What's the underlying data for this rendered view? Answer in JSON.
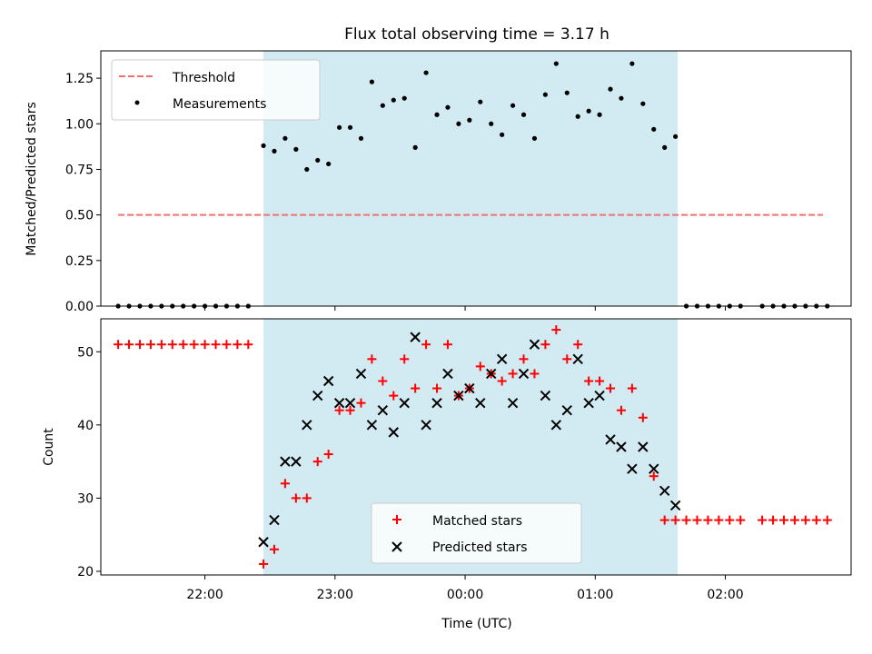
{
  "chart_data": [
    {
      "type": "scatter",
      "title": "Flux total observing time = 3.17 h",
      "ylabel": "Matched/Predicted stars",
      "xlabel": "",
      "xlim": [
        "21:12",
        "02:58"
      ],
      "ylim": [
        0.0,
        1.4
      ],
      "yticks": [
        "0.00",
        "0.25",
        "0.50",
        "0.75",
        "1.00",
        "1.25"
      ],
      "shaded_span": [
        "22:27",
        "01:38"
      ],
      "threshold": {
        "label": "Threshold",
        "y": 0.5,
        "x": [
          "21:20",
          "02:45"
        ],
        "color": "#f07070"
      },
      "measurements_label": "Measurements",
      "measurements": [
        [
          "21:20",
          0
        ],
        [
          "21:25",
          0
        ],
        [
          "21:30",
          0
        ],
        [
          "21:35",
          0
        ],
        [
          "21:40",
          0
        ],
        [
          "21:45",
          0
        ],
        [
          "21:50",
          0
        ],
        [
          "21:55",
          0
        ],
        [
          "22:00",
          0
        ],
        [
          "22:05",
          0
        ],
        [
          "22:10",
          0
        ],
        [
          "22:15",
          0
        ],
        [
          "22:20",
          0
        ],
        [
          "22:27",
          0.88
        ],
        [
          "22:32",
          0.85
        ],
        [
          "22:37",
          0.92
        ],
        [
          "22:42",
          0.86
        ],
        [
          "22:47",
          0.75
        ],
        [
          "22:52",
          0.8
        ],
        [
          "22:57",
          0.78
        ],
        [
          "23:02",
          0.98
        ],
        [
          "23:07",
          0.98
        ],
        [
          "23:12",
          0.92
        ],
        [
          "23:17",
          1.23
        ],
        [
          "23:22",
          1.1
        ],
        [
          "23:27",
          1.13
        ],
        [
          "23:32",
          1.14
        ],
        [
          "23:37",
          0.87
        ],
        [
          "23:42",
          1.28
        ],
        [
          "23:47",
          1.05
        ],
        [
          "23:52",
          1.09
        ],
        [
          "23:57",
          1.0
        ],
        [
          "00:02",
          1.02
        ],
        [
          "00:07",
          1.12
        ],
        [
          "00:12",
          1.0
        ],
        [
          "00:17",
          0.94
        ],
        [
          "00:22",
          1.1
        ],
        [
          "00:27",
          1.05
        ],
        [
          "00:32",
          0.92
        ],
        [
          "00:37",
          1.16
        ],
        [
          "00:42",
          1.33
        ],
        [
          "00:47",
          1.17
        ],
        [
          "00:52",
          1.04
        ],
        [
          "00:57",
          1.07
        ],
        [
          "01:02",
          1.05
        ],
        [
          "01:07",
          1.19
        ],
        [
          "01:12",
          1.14
        ],
        [
          "01:17",
          1.33
        ],
        [
          "01:22",
          1.11
        ],
        [
          "01:27",
          0.97
        ],
        [
          "01:32",
          0.87
        ],
        [
          "01:37",
          0.93
        ],
        [
          "01:42",
          0
        ],
        [
          "01:47",
          0
        ],
        [
          "01:52",
          0
        ],
        [
          "01:57",
          0
        ],
        [
          "02:02",
          0
        ],
        [
          "02:07",
          0
        ],
        [
          "02:17",
          0
        ],
        [
          "02:22",
          0
        ],
        [
          "02:27",
          0
        ],
        [
          "02:32",
          0
        ],
        [
          "02:37",
          0
        ],
        [
          "02:42",
          0
        ],
        [
          "02:47",
          0
        ]
      ]
    },
    {
      "type": "scatter",
      "title": "",
      "ylabel": "Count",
      "xlabel": "Time (UTC)",
      "xlim": [
        "21:12",
        "02:58"
      ],
      "ylim": [
        19.5,
        54.5
      ],
      "yticks": [
        "20",
        "30",
        "40",
        "50"
      ],
      "xticks": [
        "22:00",
        "23:00",
        "00:00",
        "01:00",
        "02:00"
      ],
      "shaded_span": [
        "22:27",
        "01:38"
      ],
      "series": [
        {
          "name": "Matched stars",
          "marker": "plus",
          "color": "#ff0000",
          "points": [
            [
              "21:20",
              51
            ],
            [
              "21:25",
              51
            ],
            [
              "21:30",
              51
            ],
            [
              "21:35",
              51
            ],
            [
              "21:40",
              51
            ],
            [
              "21:45",
              51
            ],
            [
              "21:50",
              51
            ],
            [
              "21:55",
              51
            ],
            [
              "22:00",
              51
            ],
            [
              "22:05",
              51
            ],
            [
              "22:10",
              51
            ],
            [
              "22:15",
              51
            ],
            [
              "22:20",
              51
            ],
            [
              "22:27",
              21
            ],
            [
              "22:32",
              23
            ],
            [
              "22:37",
              32
            ],
            [
              "22:42",
              30
            ],
            [
              "22:47",
              30
            ],
            [
              "22:52",
              35
            ],
            [
              "22:57",
              36
            ],
            [
              "23:02",
              42
            ],
            [
              "23:07",
              42
            ],
            [
              "23:12",
              43
            ],
            [
              "23:17",
              49
            ],
            [
              "23:22",
              46
            ],
            [
              "23:27",
              44
            ],
            [
              "23:32",
              49
            ],
            [
              "23:37",
              45
            ],
            [
              "23:42",
              51
            ],
            [
              "23:47",
              45
            ],
            [
              "23:52",
              51
            ],
            [
              "23:57",
              44
            ],
            [
              "00:02",
              45
            ],
            [
              "00:07",
              48
            ],
            [
              "00:12",
              47
            ],
            [
              "00:17",
              46
            ],
            [
              "00:22",
              47
            ],
            [
              "00:27",
              49
            ],
            [
              "00:32",
              47
            ],
            [
              "00:37",
              51
            ],
            [
              "00:42",
              53
            ],
            [
              "00:47",
              49
            ],
            [
              "00:52",
              51
            ],
            [
              "00:57",
              46
            ],
            [
              "01:02",
              46
            ],
            [
              "01:07",
              45
            ],
            [
              "01:12",
              42
            ],
            [
              "01:17",
              45
            ],
            [
              "01:22",
              41
            ],
            [
              "01:27",
              33
            ],
            [
              "01:32",
              27
            ],
            [
              "01:37",
              27
            ],
            [
              "01:42",
              27
            ],
            [
              "01:47",
              27
            ],
            [
              "01:52",
              27
            ],
            [
              "01:57",
              27
            ],
            [
              "02:02",
              27
            ],
            [
              "02:07",
              27
            ],
            [
              "02:17",
              27
            ],
            [
              "02:22",
              27
            ],
            [
              "02:27",
              27
            ],
            [
              "02:32",
              27
            ],
            [
              "02:37",
              27
            ],
            [
              "02:42",
              27
            ],
            [
              "02:47",
              27
            ]
          ]
        },
        {
          "name": "Predicted stars",
          "marker": "x",
          "color": "#000000",
          "points": [
            [
              "22:27",
              24
            ],
            [
              "22:32",
              27
            ],
            [
              "22:37",
              35
            ],
            [
              "22:42",
              35
            ],
            [
              "22:47",
              40
            ],
            [
              "22:52",
              44
            ],
            [
              "22:57",
              46
            ],
            [
              "23:02",
              43
            ],
            [
              "23:07",
              43
            ],
            [
              "23:12",
              47
            ],
            [
              "23:17",
              40
            ],
            [
              "23:22",
              42
            ],
            [
              "23:27",
              39
            ],
            [
              "23:32",
              43
            ],
            [
              "23:37",
              52
            ],
            [
              "23:42",
              40
            ],
            [
              "23:47",
              43
            ],
            [
              "23:52",
              47
            ],
            [
              "23:57",
              44
            ],
            [
              "00:02",
              45
            ],
            [
              "00:07",
              43
            ],
            [
              "00:12",
              47
            ],
            [
              "00:17",
              49
            ],
            [
              "00:22",
              43
            ],
            [
              "00:27",
              47
            ],
            [
              "00:32",
              51
            ],
            [
              "00:37",
              44
            ],
            [
              "00:42",
              40
            ],
            [
              "00:47",
              42
            ],
            [
              "00:52",
              49
            ],
            [
              "00:57",
              43
            ],
            [
              "01:02",
              44
            ],
            [
              "01:07",
              38
            ],
            [
              "01:12",
              37
            ],
            [
              "01:17",
              34
            ],
            [
              "01:22",
              37
            ],
            [
              "01:27",
              34
            ],
            [
              "01:32",
              31
            ],
            [
              "01:37",
              29
            ]
          ]
        }
      ]
    }
  ],
  "colors": {
    "span": "#add8e6",
    "threshold": "#f07070",
    "matched": "#ff0000",
    "predicted": "#000000"
  }
}
